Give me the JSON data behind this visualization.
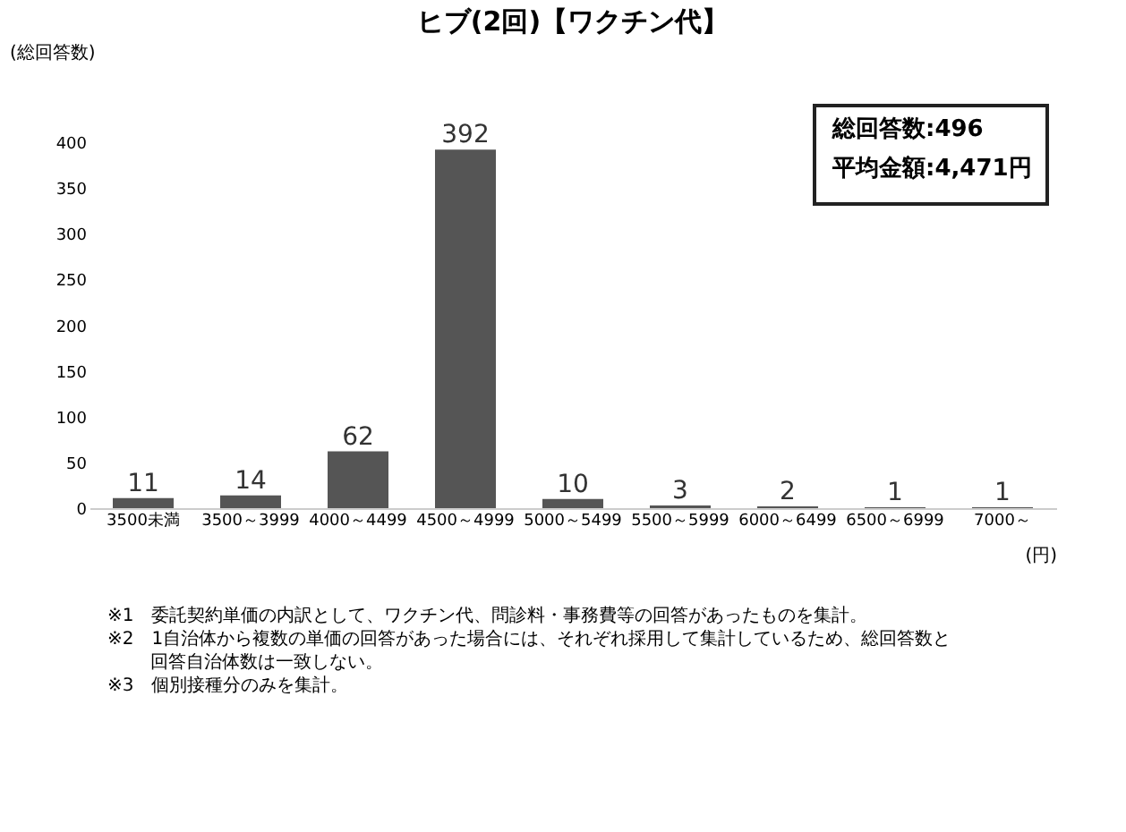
{
  "chart_data": {
    "type": "bar",
    "title": "ヒブ(2回)【ワクチン代】",
    "ylabel": "(総回答数)",
    "xlabel": "(円)",
    "categories": [
      "3500未満",
      "3500～3999",
      "4000～4499",
      "4500～4999",
      "5000～5499",
      "5500～5999",
      "6000～6499",
      "6500～6999",
      "7000～"
    ],
    "values": [
      11,
      14,
      62,
      392,
      10,
      3,
      2,
      1,
      1
    ],
    "color": "#555555",
    "data_labels": true,
    "grid": false,
    "ylim": [
      0,
      450
    ],
    "yticks": [
      0,
      50,
      100,
      150,
      200,
      250,
      300,
      350,
      400
    ],
    "annotations": [
      "総回答数:496",
      "平均金額:4,471円",
      "※1　委託契約単価の内訳として、ワクチン代、問診料・事務費等の回答があったものを集計。",
      "※2　1自治体から複数の単価の回答があった場合には、それぞれ採用して集計しているため、総回答数と",
      "回答自治体数は一致しない。",
      "※3　個別接種分のみを集計。"
    ]
  }
}
